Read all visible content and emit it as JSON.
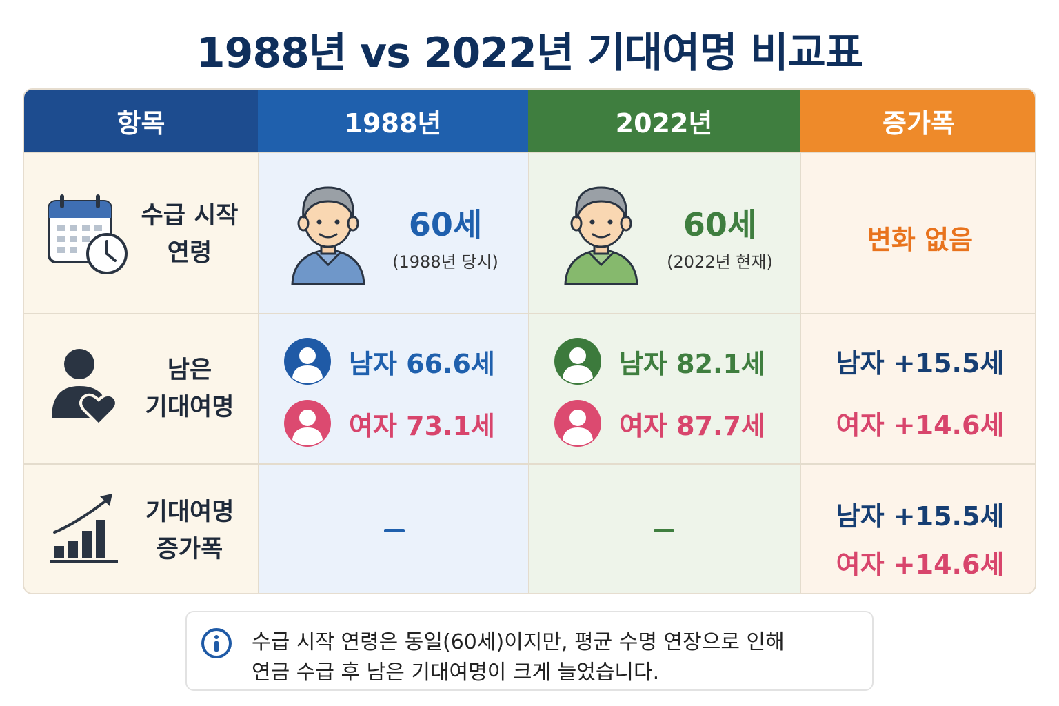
{
  "title": "1988년 vs 2022년 기대여명 비교표",
  "headers": {
    "item": "항목",
    "y1988": "1988년",
    "y2022": "2022년",
    "increase": "증가폭"
  },
  "rows": {
    "start_age": {
      "label_line1": "수급 시작",
      "label_line2": "연령",
      "y1988_value": "60세",
      "y1988_note": "(1988년 당시)",
      "y2022_value": "60세",
      "y2022_note": "(2022년 현재)",
      "increase": "변화 없음"
    },
    "remaining": {
      "label_line1": "남은",
      "label_line2": "기대여명",
      "y1988_male": "남자 66.6세",
      "y1988_female": "여자 73.1세",
      "y2022_male": "남자 82.1세",
      "y2022_female": "여자 87.7세",
      "inc_male": "남자 +15.5세",
      "inc_female": "여자 +14.6세"
    },
    "increase": {
      "label_line1": "기대여명",
      "label_line2": "증가폭",
      "y1988_value": "–",
      "y2022_value": "–",
      "inc_male": "남자 +15.5세",
      "inc_female": "여자 +14.6세"
    }
  },
  "note": {
    "line1": "수급 시작 연령은 동일(60세)이지만, 평균 수명 연장으로 인해",
    "line2": "연금 수급 후 남은 기대여명이 크게 늘었습니다."
  },
  "icons": {
    "calendar": "calendar-clock-icon",
    "person_heart": "person-heart-icon",
    "growth": "growth-chart-icon",
    "info": "info-icon"
  },
  "colors": {
    "title": "#0f2f5c",
    "header_item": "#1d4c8f",
    "header_1988": "#1f60ad",
    "header_2022": "#3f7e3f",
    "header_increase": "#ee8a2a",
    "male_1988": "#1f60ad",
    "male_2022": "#3f7e3f",
    "female": "#d8456c",
    "no_change": "#e8731d"
  }
}
